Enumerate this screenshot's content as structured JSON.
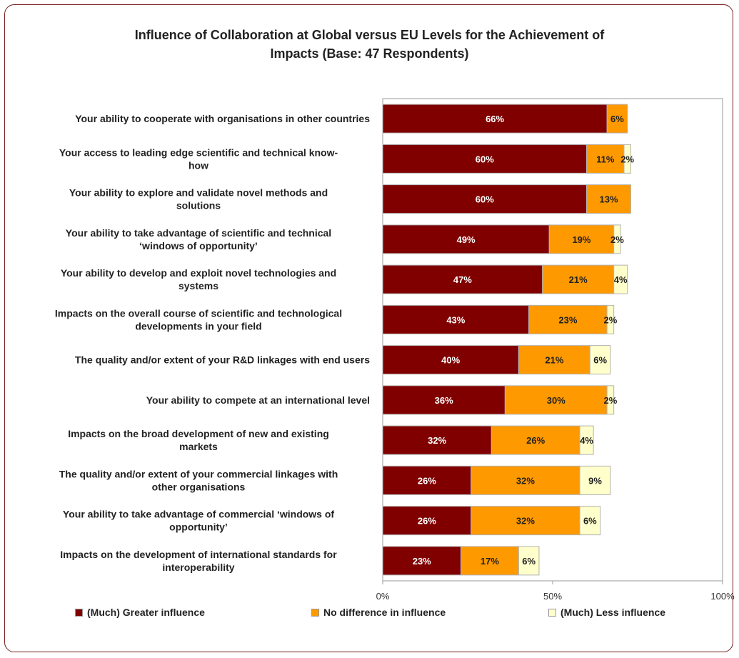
{
  "chart_data": {
    "type": "bar",
    "orientation": "horizontal",
    "stacked": true,
    "title": "Influence of Collaboration at Global versus EU Levels for the Achievement of\nImpacts (Base: 47 Respondents)",
    "categories": [
      "Your ability to cooperate with organisations in other countries",
      "Your access to leading edge scientific and technical know-\nhow",
      "Your ability to explore and validate novel methods and\nsolutions",
      "Your ability to take advantage of scientific and technical\n‘windows of opportunity’",
      "Your ability to develop and exploit novel technologies and\nsystems",
      "Impacts on the overall course of scientific and technological\ndevelopments in your field",
      "The quality and/or extent of your R&D linkages with end users",
      "Your ability to compete at an international level",
      "Impacts on the broad development of new and existing\nmarkets",
      "The quality and/or extent of your commercial linkages with\nother organisations",
      "Your ability to take advantage of commercial ‘windows of\nopportunity’",
      "Impacts on the development of international standards for\ninteroperability"
    ],
    "series": [
      {
        "name": "(Much) Greater influence",
        "color": "#800000",
        "label_color": "#ffffff",
        "values": [
          66,
          60,
          60,
          49,
          47,
          43,
          40,
          36,
          32,
          26,
          26,
          23
        ]
      },
      {
        "name": "No difference in influence",
        "color": "#ff9900",
        "label_color": "#222222",
        "values": [
          6,
          11,
          13,
          19,
          21,
          23,
          21,
          30,
          26,
          32,
          32,
          17
        ]
      },
      {
        "name": "(Much) Less influence",
        "color": "#ffffcc",
        "label_color": "#222222",
        "values": [
          0,
          2,
          0,
          2,
          4,
          2,
          6,
          2,
          4,
          9,
          6,
          6
        ]
      }
    ],
    "xlim": [
      0,
      100
    ],
    "xticks": [
      "0%",
      "50%",
      "100%"
    ],
    "legend_position": "bottom"
  }
}
